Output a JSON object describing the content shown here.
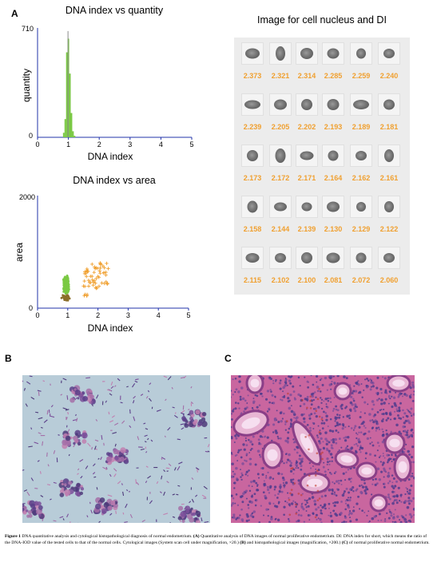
{
  "panels": {
    "a": "A",
    "b": "B",
    "c": "C"
  },
  "charts": {
    "hist": {
      "title": "DNA index vs quantity",
      "xlabel": "DNA index",
      "ylabel": "quantity",
      "ymax_label": "710",
      "ymin_label": "0",
      "xticks": [
        "0",
        "1",
        "2",
        "3",
        "4",
        "5"
      ]
    },
    "scatter": {
      "title": "DNA index vs area",
      "xlabel": "DNA index",
      "ylabel": "area",
      "ymax_label": "2000",
      "ymin_label": "0",
      "xticks": [
        "0",
        "1",
        "2",
        "3",
        "4",
        "5"
      ]
    }
  },
  "chart_data": [
    {
      "type": "bar",
      "title": "DNA index vs quantity",
      "xlabel": "DNA index",
      "ylabel": "quantity",
      "xlim": [
        0,
        5
      ],
      "ylim": [
        0,
        710
      ],
      "bins": [
        {
          "x": 0.85,
          "value": 30,
          "color": "#7ac943"
        },
        {
          "x": 0.9,
          "value": 120,
          "color": "#7ac943"
        },
        {
          "x": 0.95,
          "value": 560,
          "color": "#7ac943"
        },
        {
          "x": 1.0,
          "value": 650,
          "color": "#7ac943"
        },
        {
          "x": 1.05,
          "value": 420,
          "color": "#7ac943"
        },
        {
          "x": 1.1,
          "value": 160,
          "color": "#7ac943"
        },
        {
          "x": 1.15,
          "value": 40,
          "color": "#7ac943"
        },
        {
          "x": 1.2,
          "value": 10,
          "color": "#7ac943"
        },
        {
          "x": 1.0,
          "value": 700,
          "color": "#888888"
        }
      ]
    },
    {
      "type": "scatter",
      "title": "DNA index vs area",
      "xlabel": "DNA index",
      "ylabel": "area",
      "xlim": [
        0,
        5
      ],
      "ylim": [
        0,
        2000
      ],
      "series": [
        {
          "color": "#7ac943",
          "marker": "circle"
        },
        {
          "color": "#8b6f2a",
          "marker": "circle"
        },
        {
          "color": "#f0a030",
          "marker": "plus"
        }
      ]
    }
  ],
  "cells": {
    "title": "Image for cell nucleus and DI",
    "rows": [
      [
        "2.373",
        "2.321",
        "2.314",
        "2.285",
        "2.259",
        "2.240"
      ],
      [
        "2.239",
        "2.205",
        "2.202",
        "2.193",
        "2.189",
        "2.181"
      ],
      [
        "2.173",
        "2.172",
        "2.171",
        "2.164",
        "2.162",
        "2.161"
      ],
      [
        "2.158",
        "2.144",
        "2.139",
        "2.130",
        "2.129",
        "2.122"
      ],
      [
        "2.115",
        "2.102",
        "2.100",
        "2.081",
        "2.072",
        "2.060"
      ]
    ]
  },
  "caption": {
    "bold": "Figure 1",
    "text": " DNA quantitative analysis and cytological histopathological diagnosis of normal endometrium. ",
    "a_bold": "(A)",
    "a_text": " Quantitative analysis of DNA images of normal proliferative endometrium. DI: DNA index for short, which means the ratio of the DNA-IOD value of the tested cells to that of the normal cells. Cytological images (System scan cell under magnification, ×20.) ",
    "b_bold": "(B)",
    "b_text": " and histopathological images (magnification, ×200.) ",
    "c_bold": "(C)",
    "c_text": " of normal proliferative normal endometrium."
  }
}
